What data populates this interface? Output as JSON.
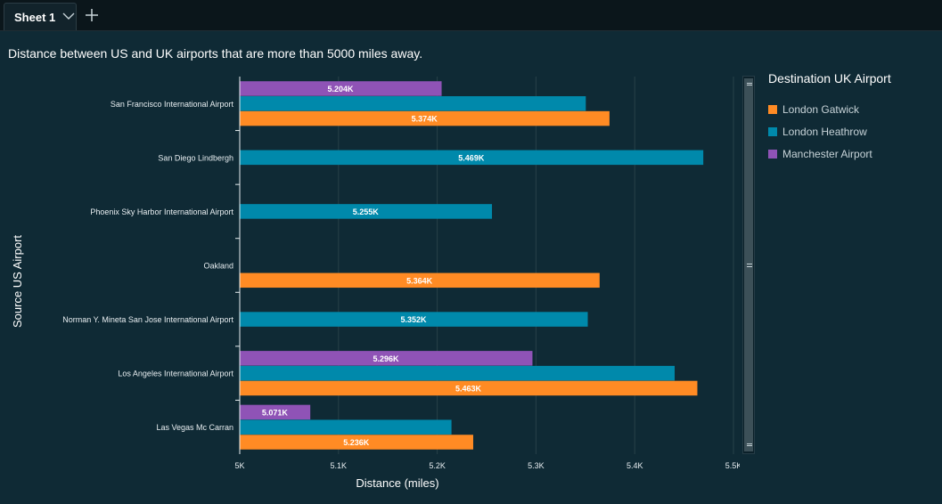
{
  "tabs": [
    {
      "label": "Sheet 1"
    }
  ],
  "chart_data": {
    "type": "bar",
    "orientation": "horizontal",
    "title": "Distance between US and UK airports that are more than 5000 miles away.",
    "xlabel": "Distance (miles)",
    "ylabel": "Source US Airport",
    "xlim": [
      5000,
      5500
    ],
    "x_ticks": [
      "5K",
      "5.1K",
      "5.2K",
      "5.3K",
      "5.4K",
      "5.5K"
    ],
    "grid": "vertical",
    "legend_position": "right",
    "legend_title": "Destination UK Airport",
    "categories": [
      "San Francisco International Airport",
      "San Diego Lindbergh",
      "Phoenix Sky Harbor International Airport",
      "Oakland",
      "Norman Y. Mineta San Jose International Airport",
      "Los Angeles International Airport",
      "Las Vegas Mc Carran"
    ],
    "series": [
      {
        "name": "London Gatwick",
        "color": "#ff8b24",
        "values": [
          5374,
          null,
          null,
          5364,
          null,
          5463,
          5236
        ]
      },
      {
        "name": "London Heathrow",
        "color": "#0089ab",
        "values": [
          5350,
          5469,
          5255,
          null,
          5352,
          5440,
          5214
        ]
      },
      {
        "name": "Manchester Airport",
        "color": "#8f53b6",
        "values": [
          5204,
          null,
          null,
          null,
          null,
          5296,
          5071
        ]
      }
    ],
    "data_labels": [
      [
        "5.374K",
        null,
        null,
        "5.364K",
        null,
        "5.463K",
        "5.236K"
      ],
      [
        null,
        "5.469K",
        "5.255K",
        null,
        "5.352K",
        null,
        null
      ],
      [
        "5.204K",
        null,
        null,
        null,
        null,
        "5.296K",
        "5.071K"
      ]
    ]
  }
}
